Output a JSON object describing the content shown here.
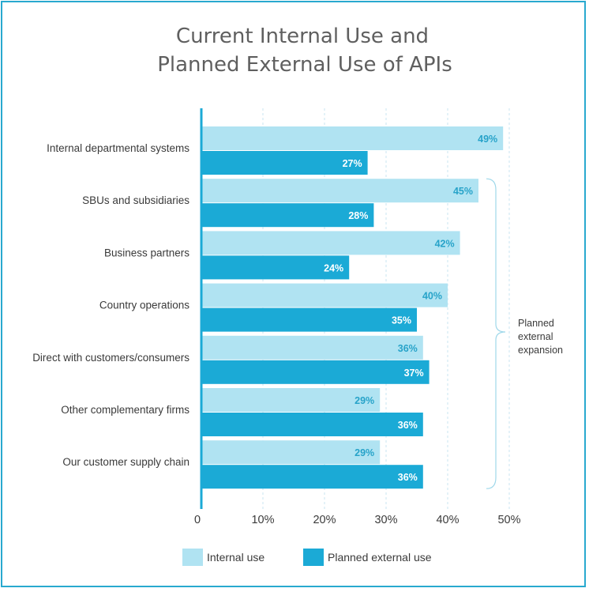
{
  "chart_data": {
    "type": "bar",
    "orientation": "horizontal",
    "title": [
      "Current Internal Use and",
      "Planned External Use of APIs"
    ],
    "categories": [
      "Internal departmental systems",
      "SBUs and subsidiaries",
      "Business partners",
      "Country operations",
      "Direct with customers/consumers",
      "Other complementary firms",
      "Our customer supply chain"
    ],
    "series": [
      {
        "name": "Internal use",
        "color": "#b0e3f2",
        "label_color": "#27a3c9",
        "values": [
          49,
          45,
          42,
          40,
          36,
          29,
          29
        ]
      },
      {
        "name": "Planned external use",
        "color": "#1baad6",
        "label_color": "#ffffff",
        "values": [
          27,
          28,
          24,
          35,
          37,
          36,
          36
        ]
      }
    ],
    "value_suffix": "%",
    "xlim": [
      0,
      50
    ],
    "xticks": [
      "0",
      "10%",
      "20%",
      "30%",
      "40%",
      "50%"
    ],
    "grid": "vertical dashed",
    "legend_position": "bottom",
    "annotation": {
      "lines": [
        "Planned",
        "external",
        "expansion"
      ],
      "spans_categories": [
        1,
        6
      ]
    }
  }
}
